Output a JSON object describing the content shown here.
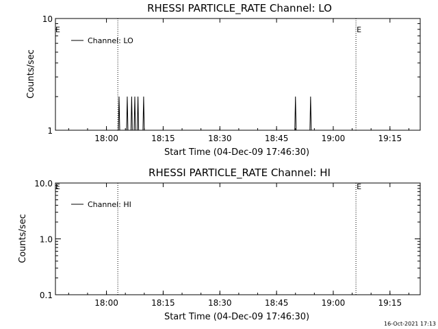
{
  "footer": {
    "timestamp": "16-Oct-2021 17:13"
  },
  "chart_data": [
    {
      "type": "line",
      "title": "RHESSI PARTICLE_RATE Channel: LO",
      "xlabel": "Start Time (04-Dec-09 17:46:30)",
      "ylabel": "Counts/sec",
      "yscale": "log",
      "ylim": [
        1,
        10
      ],
      "xlim_minutes": [
        -13.5,
        60
      ],
      "xtick_labels": [
        "18:00",
        "18:15",
        "18:30",
        "18:45",
        "19:00",
        "19:15"
      ],
      "ytick_labels": [
        "1",
        "10"
      ],
      "legend": {
        "entries": [
          "Channel: LO"
        ],
        "placement": "top-left"
      },
      "event_lines": [
        {
          "time": "18:03",
          "label": ""
        },
        {
          "time": "19:06",
          "label": "E"
        },
        {
          "time": "19:23",
          "label": ""
        }
      ],
      "edge_label": "E",
      "series": [
        {
          "name": "Channel: LO",
          "x": [
            "18:03:20",
            "18:05:30",
            "18:06:40",
            "18:07:30",
            "18:08:20",
            "18:09:50",
            "18:50:00",
            "18:54:00"
          ],
          "y": [
            2,
            2,
            2,
            2,
            2,
            2,
            2,
            2
          ]
        }
      ]
    },
    {
      "type": "line",
      "title": "RHESSI PARTICLE_RATE Channel: HI",
      "xlabel": "Start Time (04-Dec-09 17:46:30)",
      "ylabel": "Counts/sec",
      "yscale": "log",
      "ylim": [
        0.1,
        10
      ],
      "xtick_labels": [
        "18:00",
        "18:15",
        "18:30",
        "18:45",
        "19:00",
        "19:15"
      ],
      "ytick_labels": [
        "0.1",
        "1.0",
        "10.0"
      ],
      "legend": {
        "entries": [
          "Channel: HI"
        ],
        "placement": "top-left"
      },
      "event_lines": [
        {
          "time": "18:03",
          "label": ""
        },
        {
          "time": "19:06",
          "label": "E"
        },
        {
          "time": "19:23",
          "label": ""
        }
      ],
      "edge_label": "E",
      "series": [
        {
          "name": "Channel: HI",
          "x": [],
          "y": []
        }
      ]
    }
  ]
}
